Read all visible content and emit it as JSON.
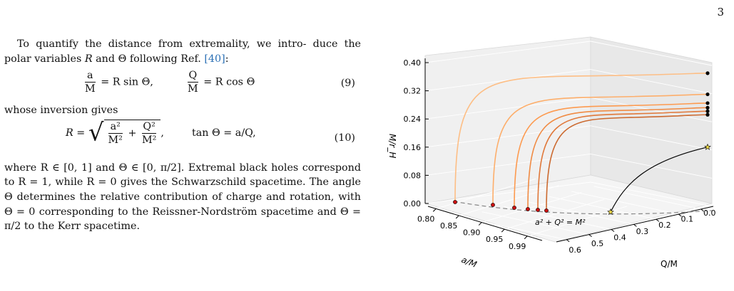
{
  "page_number": "3",
  "text": {
    "p1_a": "To quantify the distance from extremality, we intro-",
    "p1_b": "duce the polar variables",
    "var_R": "R",
    "and": "and",
    "var_Theta": "Θ",
    "following_ref": "following Ref.",
    "ref": "[40]",
    "colon": ":",
    "eq9": {
      "lhs1_num": "a",
      "lhs1_den": "M",
      "rhs1": "= R sin Θ,",
      "lhs2_num": "Q",
      "lhs2_den": "M",
      "rhs2": "= R cos Θ",
      "number": "(9)"
    },
    "inversion": "whose inversion gives",
    "eq10": {
      "lhs": "R =",
      "t1_num": "a²",
      "t1_den": "M²",
      "plus": "+",
      "t2_num": "Q²",
      "t2_den": "M²",
      "comma": ",",
      "tan": "tan Θ = a/Q,",
      "number": "(10)"
    },
    "p2_l1": "where R ∈ [0, 1] and Θ ∈ [0, π/2]. Extremal black",
    "p2_l2": "holes correspond to R = 1, while R = 0 gives the",
    "p2_l3": "Schwarzschild spacetime. The angle Θ determines the",
    "p2_l4": "relative contribution of charge and rotation, with Θ = 0",
    "p2_l5": "corresponding to the Reissner-Nordström spacetime and",
    "p2_l6": "Θ = π/2 to the Kerr spacetime."
  },
  "chart_data": {
    "type": "line",
    "projection": "3d",
    "xlabel": "a/M",
    "ylabel": "Q/M",
    "zlabel": "M/r_H",
    "x_ticks": [
      "0.80",
      "0.85",
      "0.90",
      "0.95",
      "0.99"
    ],
    "y_ticks": [
      "0.6",
      "0.5",
      "0.4",
      "0.3",
      "0.2",
      "0.1",
      "0.0"
    ],
    "z_ticks": [
      "0.00",
      "0.08",
      "0.16",
      "0.24",
      "0.32",
      "0.40"
    ],
    "zlim": [
      0,
      0.4
    ],
    "annotation": "a² + Q² = M²",
    "colors": [
      "#fdbe85",
      "#fdae6b",
      "#fd9a4f",
      "#f08b44",
      "#e0783a",
      "#cc6a30",
      "#000000"
    ],
    "series": [
      {
        "a_over_M": 0.8,
        "z_end": 0.37,
        "end_marker": "black-dot",
        "start_marker": "red-dot"
      },
      {
        "a_over_M": 0.85,
        "z_end": 0.31,
        "end_marker": "black-dot",
        "start_marker": "red-dot"
      },
      {
        "a_over_M": 0.9,
        "z_end": 0.285,
        "end_marker": "black-dot",
        "start_marker": "red-dot"
      },
      {
        "a_over_M": 0.92,
        "z_end": 0.272,
        "end_marker": "black-dot",
        "start_marker": "red-dot"
      },
      {
        "a_over_M": 0.94,
        "z_end": 0.262,
        "end_marker": "black-dot",
        "start_marker": "red-dot"
      },
      {
        "a_over_M": 0.95,
        "z_end": 0.252,
        "end_marker": "black-dot",
        "start_marker": "red-dot"
      },
      {
        "a_over_M": 0.99,
        "z_end": 0.16,
        "end_marker": "yellow-star",
        "start_marker": "yellow-star"
      }
    ]
  }
}
